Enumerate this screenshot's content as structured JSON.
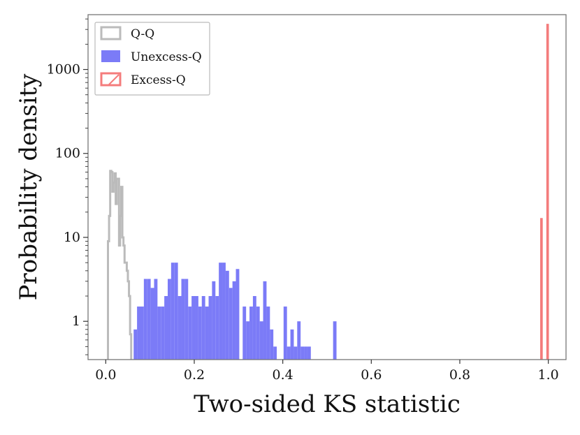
{
  "chart_data": {
    "type": "histogram",
    "xlabel": "Two-sided KS statistic",
    "ylabel": "Probability density",
    "xlim": [
      -0.04,
      1.04
    ],
    "ylim": [
      0.35,
      4500
    ],
    "yscale": "log",
    "xticks": [
      0.0,
      0.2,
      0.4,
      0.6,
      0.8,
      1.0
    ],
    "xtick_labels": [
      "0.0",
      "0.2",
      "0.4",
      "0.6",
      "0.8",
      "1.0"
    ],
    "yticks": [
      1,
      10,
      100,
      1000
    ],
    "ytick_labels": [
      "1",
      "10",
      "100",
      "1000"
    ],
    "legend_position": "top-left",
    "series": [
      {
        "name": "Q-Q",
        "style": "step",
        "color": "#bbbbbb",
        "bin_edges": [
          0.005,
          0.0075,
          0.01,
          0.0125,
          0.015,
          0.0175,
          0.02,
          0.0225,
          0.025,
          0.0275,
          0.03,
          0.0325,
          0.035,
          0.0375,
          0.04,
          0.0425,
          0.045,
          0.0475,
          0.05,
          0.0525,
          0.055,
          0.0575
        ],
        "values": [
          9,
          18,
          62,
          60,
          35,
          45,
          58,
          25,
          50,
          50,
          8,
          18,
          40,
          10,
          8,
          5,
          5,
          4,
          3,
          2,
          0.7
        ]
      },
      {
        "name": "Unexcess-Q",
        "style": "bar",
        "color": "#7b7bf7",
        "bin_edges": [
          0.063,
          0.0707,
          0.0784,
          0.0861,
          0.0938,
          0.1015,
          0.1092,
          0.1169,
          0.1246,
          0.1323,
          0.14,
          0.1477,
          0.1554,
          0.1631,
          0.1708,
          0.1785,
          0.1862,
          0.1939,
          0.2016,
          0.2093,
          0.217,
          0.2247,
          0.2324,
          0.2401,
          0.2478,
          0.2555,
          0.2632,
          0.2709,
          0.2786,
          0.2863,
          0.294,
          0.3017,
          0.3094,
          0.3171,
          0.3248,
          0.3325,
          0.3402,
          0.3479,
          0.3556,
          0.3633,
          0.371,
          0.3787,
          0.3864,
          0.3941,
          0.4018,
          0.4095,
          0.4172,
          0.4249,
          0.4326,
          0.4403,
          0.448,
          0.4557,
          0.4634
        ],
        "values": [
          0.8,
          1.5,
          1.5,
          3.2,
          3.2,
          2.5,
          3.2,
          1.5,
          1.5,
          2.0,
          3.2,
          5.0,
          5.0,
          2.0,
          3.2,
          3.2,
          1.5,
          2.0,
          2.0,
          1.5,
          2.0,
          1.5,
          2.0,
          3.0,
          2.0,
          5.0,
          5.0,
          4.0,
          2.5,
          3.0,
          4.2,
          0,
          1.5,
          1.0,
          1.5,
          2.0,
          1.5,
          1.0,
          3.0,
          1.5,
          0.8,
          0.5,
          0,
          0,
          1.5,
          0.5,
          0.8,
          0.5,
          1.0,
          0.5,
          0.5,
          0.5
        ],
        "extra_bars": [
          {
            "x0": 0.5137,
            "x1": 0.5214,
            "value": 1.0
          }
        ]
      },
      {
        "name": "Excess-Q",
        "style": "bar",
        "color": "#f47c7c",
        "bins": [
          {
            "x0": 0.9816,
            "x1": 0.9874,
            "value": 17
          },
          {
            "x0": 0.9955,
            "x1": 1.0013,
            "value": 3500
          }
        ]
      }
    ]
  }
}
